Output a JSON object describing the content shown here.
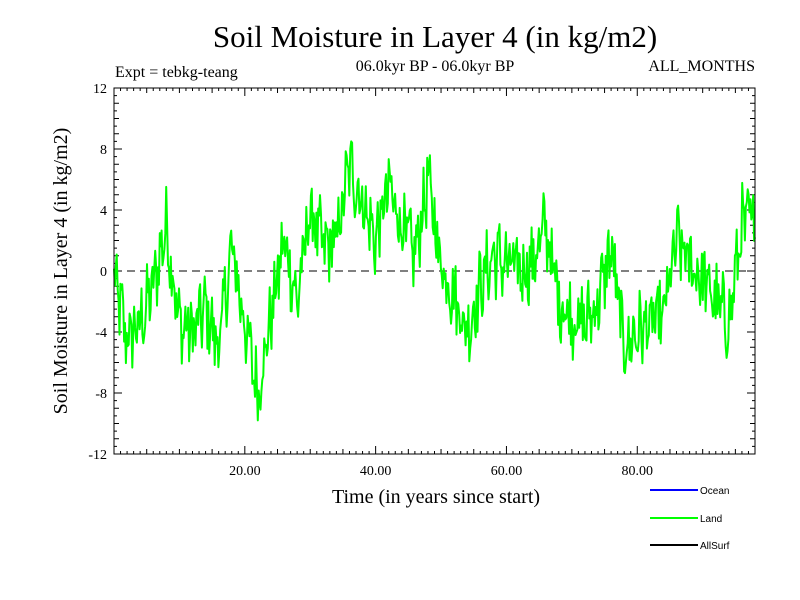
{
  "chart_data": {
    "type": "line",
    "title": "Soil Moisture in Layer 4 (in kg/m2)",
    "subtitle_left": "Expt = tebkg-teang",
    "subtitle_center": "06.0kyr BP - 06.0kyr BP",
    "subtitle_right": "ALL_MONTHS",
    "xlabel": "Time (in years since start)",
    "ylabel": "Soil Moisture in Layer 4 (in kg/m2)",
    "xlim": [
      0,
      98
    ],
    "ylim": [
      -12,
      12
    ],
    "xticks": [
      20,
      40,
      60,
      80
    ],
    "xtick_labels": [
      "20.00",
      "40.00",
      "60.00",
      "80.00"
    ],
    "yticks": [
      -12,
      -8,
      -4,
      0,
      4,
      8,
      12
    ],
    "ytick_labels": [
      "-12",
      "-8",
      "-4",
      "0",
      "4",
      "8",
      "12"
    ],
    "zero_line": {
      "y": 0,
      "style": "dashed"
    },
    "legend": [
      {
        "name": "Ocean",
        "color": "#0000ff"
      },
      {
        "name": "Land",
        "color": "#00ff00"
      },
      {
        "name": "AllSurf",
        "color": "#000000"
      }
    ],
    "series": [
      {
        "name": "Land",
        "color": "#00ff00",
        "x": [
          0,
          2,
          4,
          6,
          8,
          10,
          12,
          14,
          16,
          18,
          20,
          22,
          24,
          26,
          28,
          30,
          32,
          34,
          36,
          38,
          40,
          42,
          44,
          46,
          48,
          50,
          52,
          54,
          56,
          58,
          60,
          62,
          64,
          66,
          68,
          70,
          72,
          74,
          76,
          78,
          80,
          82,
          84,
          86,
          88,
          90,
          92,
          94,
          96,
          98
        ],
        "values": [
          -0.5,
          -4.5,
          -3.5,
          -1,
          3,
          -3.5,
          -4,
          -2.5,
          -5,
          1.5,
          -3.5,
          -8,
          -3,
          2,
          -2,
          4,
          1.5,
          2,
          7,
          4.5,
          2,
          5.5,
          3,
          1,
          6,
          0.5,
          -1.5,
          -4,
          -1,
          1,
          0.5,
          0,
          0.5,
          3,
          -2,
          -3,
          -3.5,
          -2,
          1.5,
          -5,
          -4,
          -3.5,
          -3,
          2,
          0.5,
          -0.5,
          -2,
          -3.5,
          3,
          3.5
        ]
      }
    ]
  },
  "colors": {
    "land": "#00ff00",
    "ocean": "#0000ff",
    "allsurf": "#000000",
    "background": "#ffffff"
  }
}
